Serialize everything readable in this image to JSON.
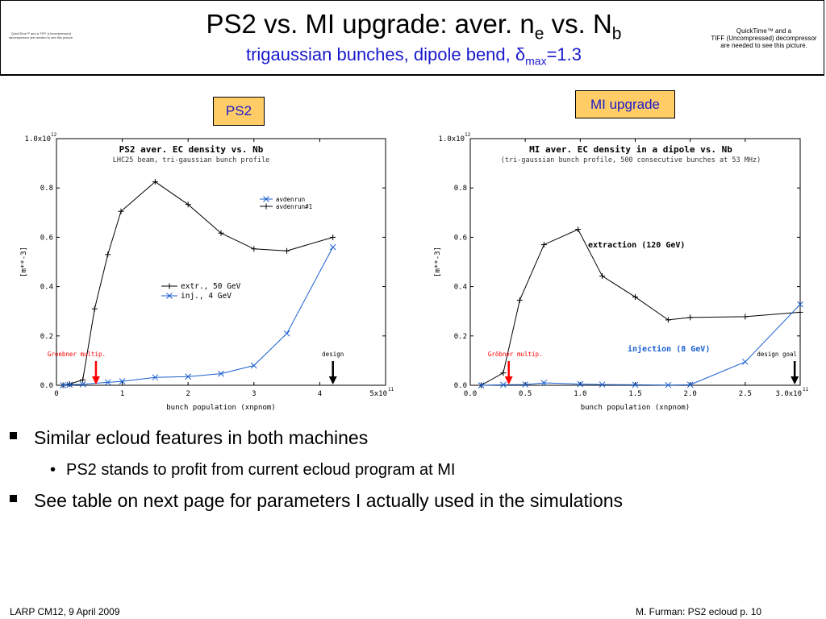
{
  "header": {
    "title_main": "PS2 vs. MI upgrade: aver. n",
    "title_sub_e": "e",
    "title_mid": " vs. N",
    "title_sub_b": "b",
    "subtitle_main": "trigaussian bunches, dipole bend, ",
    "subtitle_delta": "δ",
    "subtitle_sub": "max",
    "subtitle_end": "=1.3",
    "quicktime_small": "QuickTime™ and a TIFF (Uncompressed) decompressor are needed to see this picture.",
    "quicktime_line1": "QuickTime™ and a",
    "quicktime_line2": "TIFF (Uncompressed) decompressor",
    "quicktime_line3": "are needed to see this picture."
  },
  "tags": {
    "ps2": "PS2",
    "mi": "MI upgrade"
  },
  "chart_data": [
    {
      "type": "line",
      "title": "PS2 aver. EC density vs. Nb",
      "subtitle": "LHC25 beam, tri-gaussian bunch profile",
      "xlabel": "bunch population (xnpnom)",
      "ylabel": "[m**-3]",
      "xlim": [
        0,
        5
      ],
      "ylim": [
        0,
        1.0
      ],
      "x_ticks": [
        "0",
        "1",
        "2",
        "3",
        "4",
        "5x10"
      ],
      "x_exp": "11",
      "y_ticks": [
        "0.0",
        "0.2",
        "0.4",
        "0.6",
        "0.8",
        "1.0x10"
      ],
      "y_exp": "12",
      "legend": [
        "avdenrun",
        "avdenrun#1"
      ],
      "series": [
        {
          "name": "extr., 50 GeV",
          "color": "#000000",
          "marker": "plus",
          "x": [
            0.1,
            0.2,
            0.4,
            0.58,
            0.78,
            0.98,
            1.5,
            2.0,
            2.5,
            3.0,
            3.5,
            4.2
          ],
          "y": [
            0.0,
            0.005,
            0.022,
            0.31,
            0.53,
            0.705,
            0.825,
            0.733,
            0.617,
            0.553,
            0.545,
            0.6
          ]
        },
        {
          "name": "inj., 4 GeV",
          "color": "#1a5fd0",
          "marker": "cross",
          "x": [
            0.1,
            0.2,
            0.4,
            0.78,
            1.0,
            1.5,
            2.0,
            2.5,
            3.0,
            3.5,
            4.2
          ],
          "y": [
            0.0,
            0.002,
            0.004,
            0.012,
            0.016,
            0.032,
            0.035,
            0.047,
            0.08,
            0.21,
            0.56
          ]
        }
      ],
      "annotations": [
        {
          "text": "Groebner multip.",
          "color": "#ff0000",
          "x": 0.6
        },
        {
          "text": "design",
          "color": "#000000",
          "x": 4.2
        }
      ]
    },
    {
      "type": "line",
      "title": "MI aver. EC density in a dipole vs. Nb",
      "subtitle": "(tri-gaussian bunch profile, 500 consecutive bunches at 53 MHz)",
      "xlabel": "bunch population (xnpnom)",
      "ylabel": "[m**-3]",
      "xlim": [
        0,
        3.0
      ],
      "ylim": [
        0,
        1.0
      ],
      "x_ticks": [
        "0.0",
        "0.5",
        "1.0",
        "1.5",
        "2.0",
        "2.5",
        "3.0x10"
      ],
      "x_exp": "11",
      "y_ticks": [
        "0.0",
        "0.2",
        "0.4",
        "0.6",
        "0.8",
        "1.0x10"
      ],
      "y_exp": "12",
      "series": [
        {
          "name": "extraction (120 GeV)",
          "color": "#000000",
          "marker": "plus",
          "x": [
            0.1,
            0.3,
            0.45,
            0.67,
            0.98,
            1.2,
            1.5,
            1.8,
            2.0,
            2.5,
            3.0
          ],
          "y": [
            0.0,
            0.05,
            0.345,
            0.57,
            0.632,
            0.443,
            0.358,
            0.265,
            0.275,
            0.278,
            0.296
          ]
        },
        {
          "name": "injection (8 GeV)",
          "color": "#1a5fd0",
          "marker": "cross",
          "x": [
            0.1,
            0.3,
            0.5,
            0.67,
            1.0,
            1.2,
            1.5,
            1.8,
            2.0,
            2.5,
            3.0
          ],
          "y": [
            0.0,
            0.002,
            0.003,
            0.01,
            0.005,
            0.003,
            0.002,
            0.001,
            0.002,
            0.095,
            0.328
          ]
        }
      ],
      "annotations": [
        {
          "text": "Gröbner multip.",
          "color": "#ff0000",
          "x": 0.35
        },
        {
          "text": "design goal",
          "color": "#000000",
          "x": 2.95
        }
      ]
    }
  ],
  "bullets": {
    "b1": "Similar ecloud features in both machines",
    "b2": "PS2 stands to profit from current ecloud program at MI",
    "b3": "See table on next page for parameters I actually used in the simulations"
  },
  "footer": {
    "left": "LARP CM12, 9 April 2009",
    "right": "M. Furman: PS2 ecloud    p. 10"
  }
}
